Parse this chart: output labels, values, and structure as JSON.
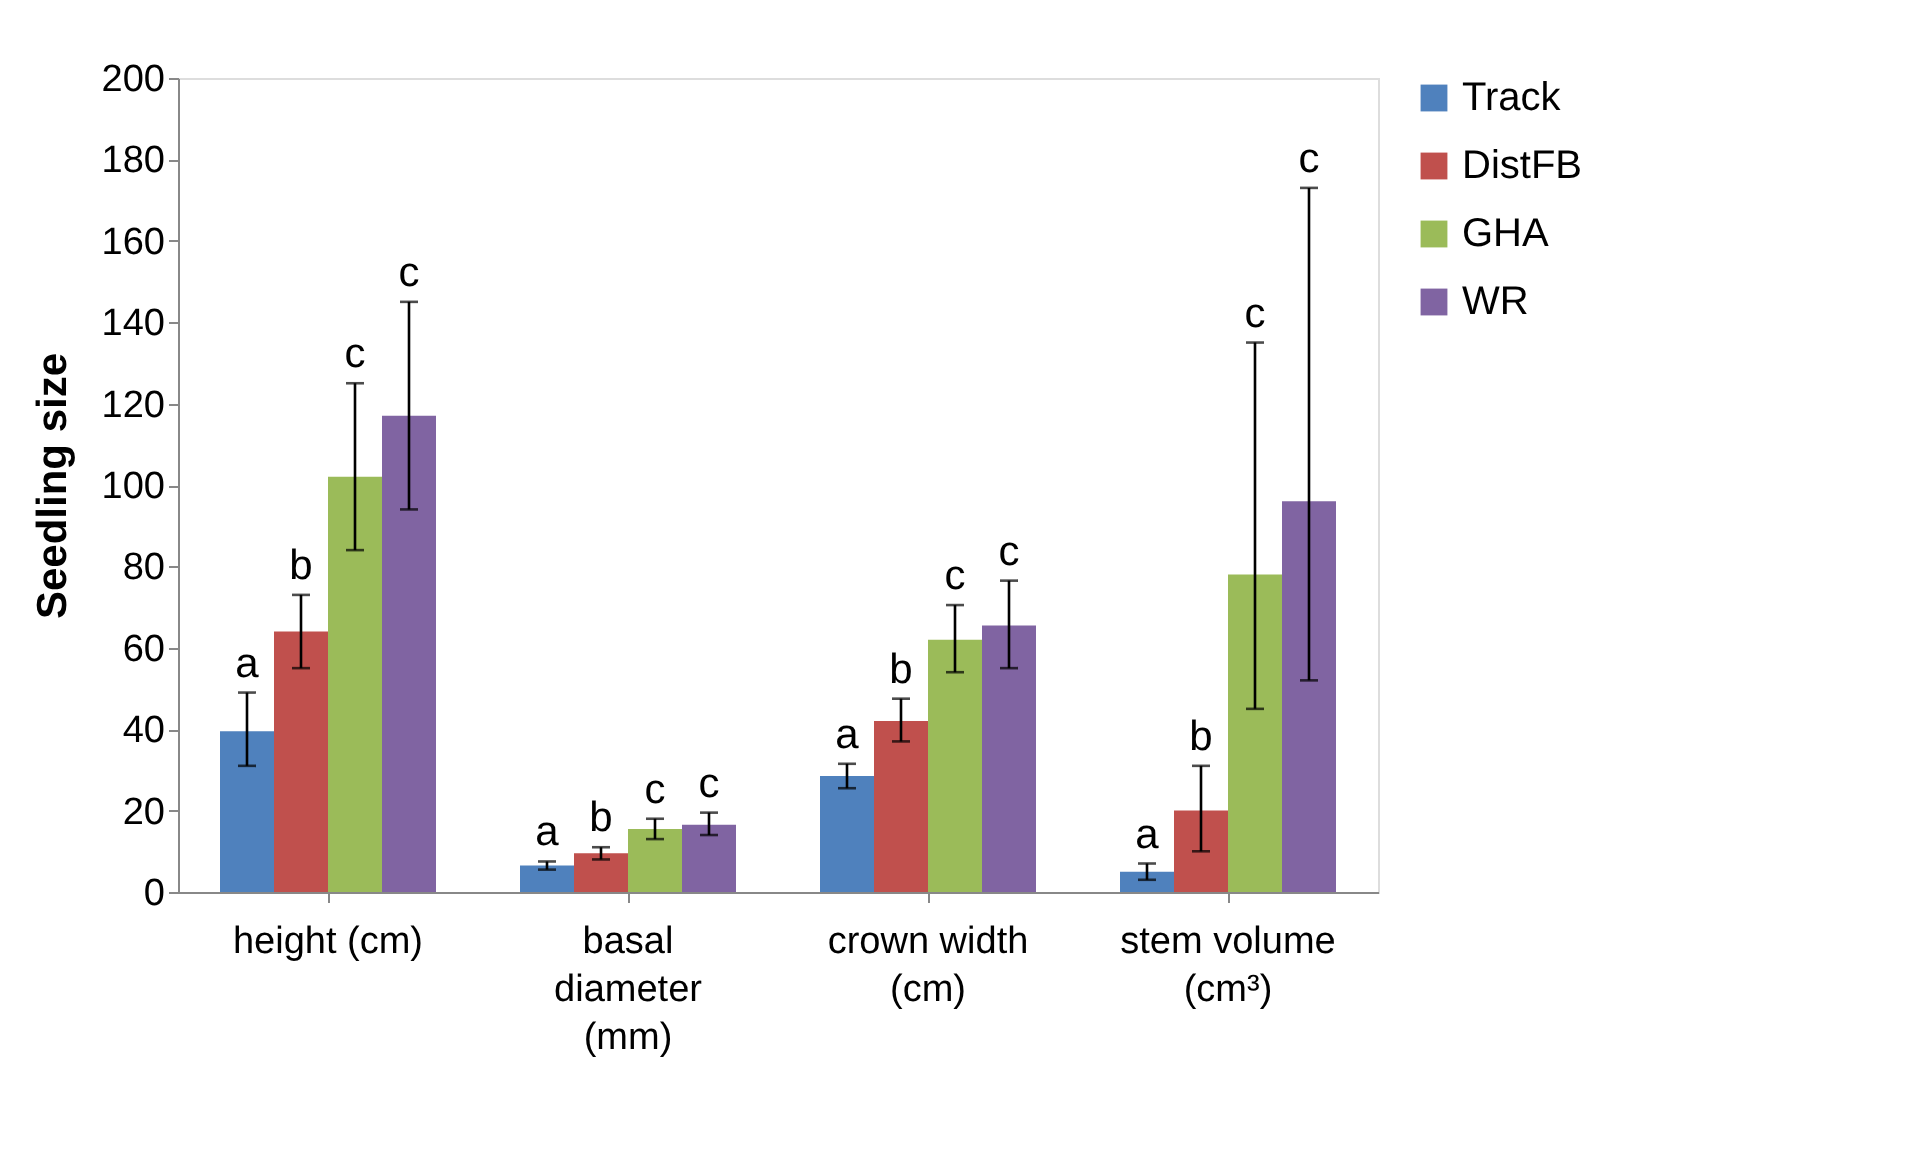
{
  "chart_data": {
    "type": "bar",
    "ylabel": "Seedling size",
    "categories": [
      "height (cm)",
      "basal diameter (mm)",
      "crown width (cm)",
      "stem volume (cm³)"
    ],
    "series": [
      {
        "name": "Track",
        "color": "#4f81bd",
        "values": [
          39.5,
          6.5,
          28.5,
          5
        ],
        "errors": [
          [
            31,
            49
          ],
          [
            5.5,
            7.5
          ],
          [
            25.5,
            31.5
          ],
          [
            3,
            7
          ]
        ]
      },
      {
        "name": "DistFB",
        "color": "#c0504d",
        "values": [
          64,
          9.5,
          42,
          20
        ],
        "errors": [
          [
            55,
            73
          ],
          [
            8,
            11
          ],
          [
            37,
            47.5
          ],
          [
            10,
            31
          ]
        ]
      },
      {
        "name": "GHA",
        "color": "#9bbb59",
        "values": [
          102,
          15.5,
          62,
          78
        ],
        "errors": [
          [
            84,
            125
          ],
          [
            13,
            18
          ],
          [
            54,
            70.5
          ],
          [
            45,
            135
          ]
        ]
      },
      {
        "name": "WR",
        "color": "#8064a2",
        "values": [
          117,
          16.5,
          65.5,
          96
        ],
        "errors": [
          [
            94,
            145
          ],
          [
            14,
            19.5
          ],
          [
            55,
            76.5
          ],
          [
            52,
            173
          ]
        ]
      }
    ],
    "annotations": [
      "a",
      "b",
      "c",
      "c",
      "a",
      "b",
      "c",
      "c",
      "a",
      "b",
      "c",
      "c",
      "a",
      "b",
      "c",
      "c"
    ],
    "ylim": [
      0,
      200
    ],
    "yticks": [
      0,
      20,
      40,
      60,
      80,
      100,
      120,
      140,
      160,
      180,
      200
    ],
    "grid": false,
    "legend": "right"
  }
}
